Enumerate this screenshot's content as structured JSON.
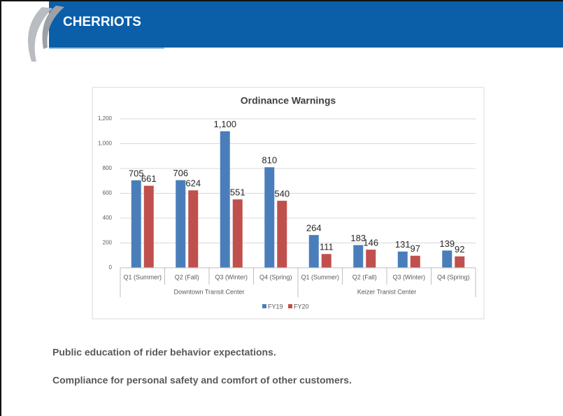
{
  "header": {
    "logo_text": "CHERRIOTS"
  },
  "chart_data": {
    "type": "bar",
    "title": "Ordinance Warnings",
    "categories": [
      "Q1 (Summer)",
      "Q2 (Fall)",
      "Q3 (Winter)",
      "Q4 (Spring)",
      "Q1 (Summer)",
      "Q2 (Fall)",
      "Q3 (Winter)",
      "Q4 (Spring)"
    ],
    "category_groups": [
      "Downtown Transit Center",
      "Keizer Tranist Center"
    ],
    "series": [
      {
        "name": "FY19",
        "color": "#4a7ebb",
        "values": [
          705,
          706,
          1100,
          810,
          264,
          183,
          131,
          139
        ],
        "value_labels": [
          "705",
          "706",
          "1,100",
          "810",
          "264",
          "183",
          "131",
          "139"
        ]
      },
      {
        "name": "FY20",
        "color": "#c0504d",
        "values": [
          661,
          624,
          551,
          540,
          111,
          146,
          97,
          92
        ],
        "value_labels": [
          "661",
          "624",
          "551",
          "540",
          "111",
          "146",
          "97",
          "92"
        ]
      }
    ],
    "ylim": [
      0,
      1200
    ],
    "yticks": [
      0,
      200,
      400,
      600,
      800,
      {
        "value": 1000,
        "label": "1,000"
      },
      {
        "value": 1200,
        "label": "1,200"
      }
    ],
    "grid": true,
    "legend": "bottom"
  },
  "body": {
    "lines": [
      "Public education of rider behavior expectations.",
      "Compliance for personal safety and comfort of other customers."
    ]
  }
}
